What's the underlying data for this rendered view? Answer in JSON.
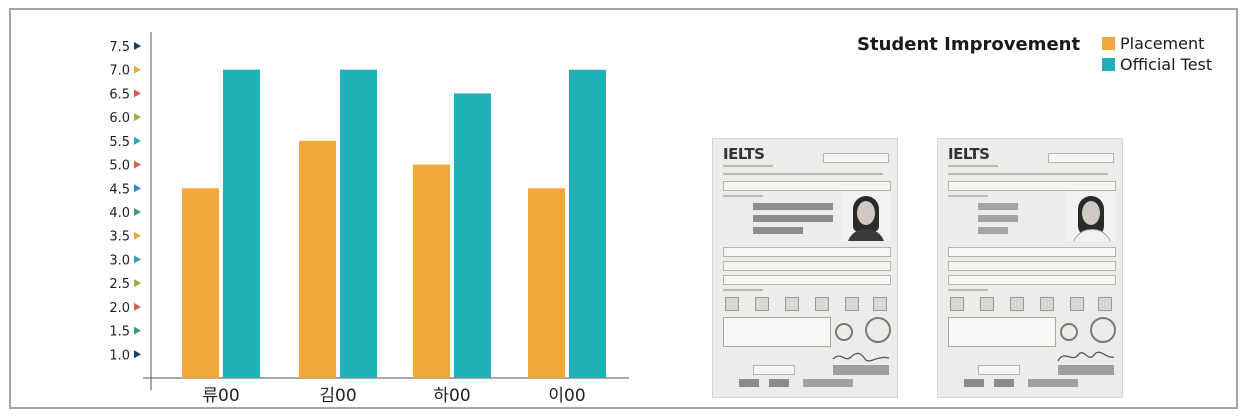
{
  "chart_data": {
    "type": "bar",
    "categories": [
      "류00",
      "김00",
      "하00",
      "이00"
    ],
    "series": [
      {
        "name": "Placement",
        "values": [
          4.5,
          5.5,
          5.0,
          4.5
        ],
        "color": "#f2a73b"
      },
      {
        "name": "Official Test",
        "values": [
          7.0,
          7.0,
          6.5,
          7.0
        ],
        "color": "#20b2b8"
      }
    ],
    "y_ticks": [
      "1.0",
      "1.5",
      "2.0",
      "2.5",
      "3.0",
      "3.5",
      "4.0",
      "4.5",
      "5.0",
      "5.5",
      "6.0",
      "6.5",
      "7.0",
      "7.5"
    ],
    "ylim": [
      0.5,
      7.5
    ],
    "tick_marker_colors": [
      "#1f3d5c",
      "#3a9c7a",
      "#e05a5a",
      "#8fb83a",
      "#2aa7b0",
      "#f2a73b",
      "#3a9c7a",
      "#2a8fc9",
      "#e05a5a",
      "#2aa7b0",
      "#8fb83a",
      "#e05a5a",
      "#f2a73b",
      "#1f3d5c"
    ],
    "title": "Student Improvement",
    "legend_position": "top-right",
    "grid": false
  },
  "documents": [
    {
      "logo": "IELTS"
    },
    {
      "logo": "IELTS"
    }
  ]
}
